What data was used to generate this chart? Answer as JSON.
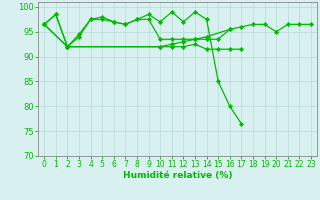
{
  "xlabel": "Humidité relative (%)",
  "background_color": "#d8f0f0",
  "grid_color": "#b8d8d8",
  "line_color": "#00bb00",
  "ylim": [
    70,
    101
  ],
  "xlim": [
    -0.5,
    23.5
  ],
  "yticks": [
    70,
    75,
    80,
    85,
    90,
    95,
    100
  ],
  "xtick_labels": [
    "0",
    "1",
    "2",
    "3",
    "4",
    "5",
    "6",
    "7",
    "8",
    "9",
    "10",
    "11",
    "12",
    "13",
    "14",
    "15",
    "16",
    "17",
    "18",
    "19",
    "20",
    "21",
    "22",
    "23"
  ],
  "series0": [
    96.5,
    98.5,
    92.0,
    94.0,
    97.5,
    98.0,
    97.0,
    96.5,
    97.5,
    98.5,
    97.0,
    99.0,
    97.0,
    99.0,
    97.5,
    85.0,
    80.0,
    76.5,
    null,
    null,
    null,
    null,
    null,
    null
  ],
  "series1": [
    96.5,
    98.5,
    92.0,
    94.5,
    97.5,
    97.5,
    97.0,
    96.5,
    97.5,
    97.5,
    93.5,
    93.5,
    93.5,
    93.5,
    93.5,
    93.5,
    95.5,
    96.0,
    96.5,
    96.5,
    95.0,
    96.5,
    96.5,
    96.5
  ],
  "series2": [
    96.5,
    null,
    92.0,
    null,
    null,
    null,
    null,
    null,
    null,
    null,
    92.0,
    92.0,
    92.0,
    92.5,
    91.5,
    91.5,
    91.5,
    91.5,
    null,
    null,
    null,
    null,
    null,
    null
  ],
  "series3": [
    96.5,
    null,
    92.0,
    null,
    null,
    null,
    null,
    null,
    null,
    null,
    92.0,
    92.5,
    93.0,
    93.5,
    94.0,
    null,
    95.5,
    null,
    null,
    null,
    null,
    null,
    null,
    null
  ]
}
